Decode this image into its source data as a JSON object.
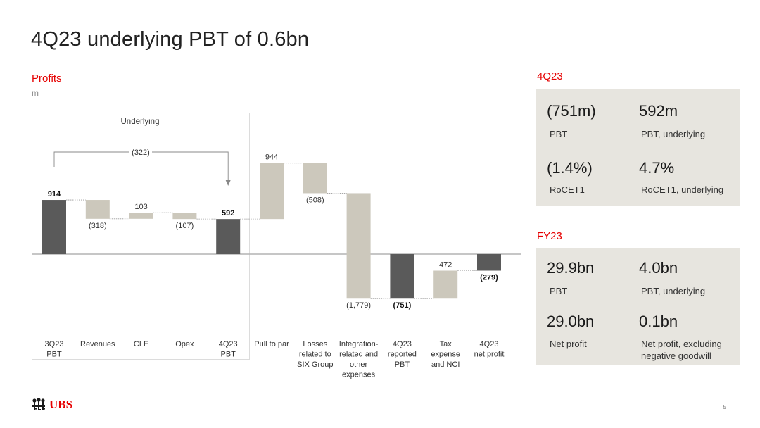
{
  "slide": {
    "title": "4Q23 underlying PBT of 0.6bn",
    "page_number": "5",
    "logo_text": "UBS",
    "logo_icon": "ubs-keys-icon",
    "accent_color": "#e60000"
  },
  "chart_data": {
    "type": "waterfall",
    "title": "Profits",
    "unit": "m",
    "group_label": "Underlying",
    "bridge_annotation": "(322)",
    "categories": [
      [
        "3Q23",
        "PBT"
      ],
      [
        "Revenues"
      ],
      [
        "CLE"
      ],
      [
        "Opex"
      ],
      [
        "4Q23",
        "PBT"
      ],
      [
        "Pull to par"
      ],
      [
        "Losses",
        "related to",
        "SIX Group"
      ],
      [
        "Integration-",
        "related and",
        "other",
        "expenses"
      ],
      [
        "4Q23",
        "reported",
        "PBT"
      ],
      [
        "Tax",
        "expense",
        "and NCI"
      ],
      [
        "4Q23",
        "net profit"
      ]
    ],
    "bars": [
      {
        "kind": "total",
        "start": 0,
        "end": 914,
        "label": "914",
        "bold": true
      },
      {
        "kind": "delta",
        "start": 914,
        "end": 596,
        "label": "(318)",
        "bold": false
      },
      {
        "kind": "delta",
        "start": 596,
        "end": 699,
        "label": "103",
        "bold": false
      },
      {
        "kind": "delta",
        "start": 699,
        "end": 592,
        "label": "(107)",
        "bold": false
      },
      {
        "kind": "total",
        "start": 0,
        "end": 592,
        "label": "592",
        "bold": true
      },
      {
        "kind": "delta",
        "start": 592,
        "end": 1536,
        "label": "944",
        "bold": false
      },
      {
        "kind": "delta",
        "start": 1536,
        "end": 1028,
        "label": "(508)",
        "bold": false
      },
      {
        "kind": "delta",
        "start": 1028,
        "end": -751,
        "label": "(1,779)",
        "bold": false
      },
      {
        "kind": "total",
        "start": 0,
        "end": -751,
        "label": "(751)",
        "bold": true
      },
      {
        "kind": "delta",
        "start": -751,
        "end": -279,
        "label": "472",
        "bold": false
      },
      {
        "kind": "total",
        "start": 0,
        "end": -279,
        "label": "(279)",
        "bold": true
      }
    ],
    "colors": {
      "total": "#5a5a5a",
      "delta": "#ccc8bc",
      "baseline": "#b3b3b3",
      "group_border": "#dcdcdc"
    }
  },
  "kpi_sections": [
    {
      "heading": "4Q23",
      "items": [
        {
          "value": "(751m)",
          "label": "PBT"
        },
        {
          "value": "592m",
          "label": "PBT, underlying"
        },
        {
          "value": "(1.4%)",
          "label": "RoCET1"
        },
        {
          "value": "4.7%",
          "label": "RoCET1, underlying"
        }
      ]
    },
    {
      "heading": "FY23",
      "items": [
        {
          "value": "29.9bn",
          "label": "PBT"
        },
        {
          "value": "4.0bn",
          "label": "PBT, underlying"
        },
        {
          "value": "29.0bn",
          "label": "Net profit"
        },
        {
          "value": "0.1bn",
          "label": "Net profit, excluding negative goodwill"
        }
      ]
    }
  ]
}
